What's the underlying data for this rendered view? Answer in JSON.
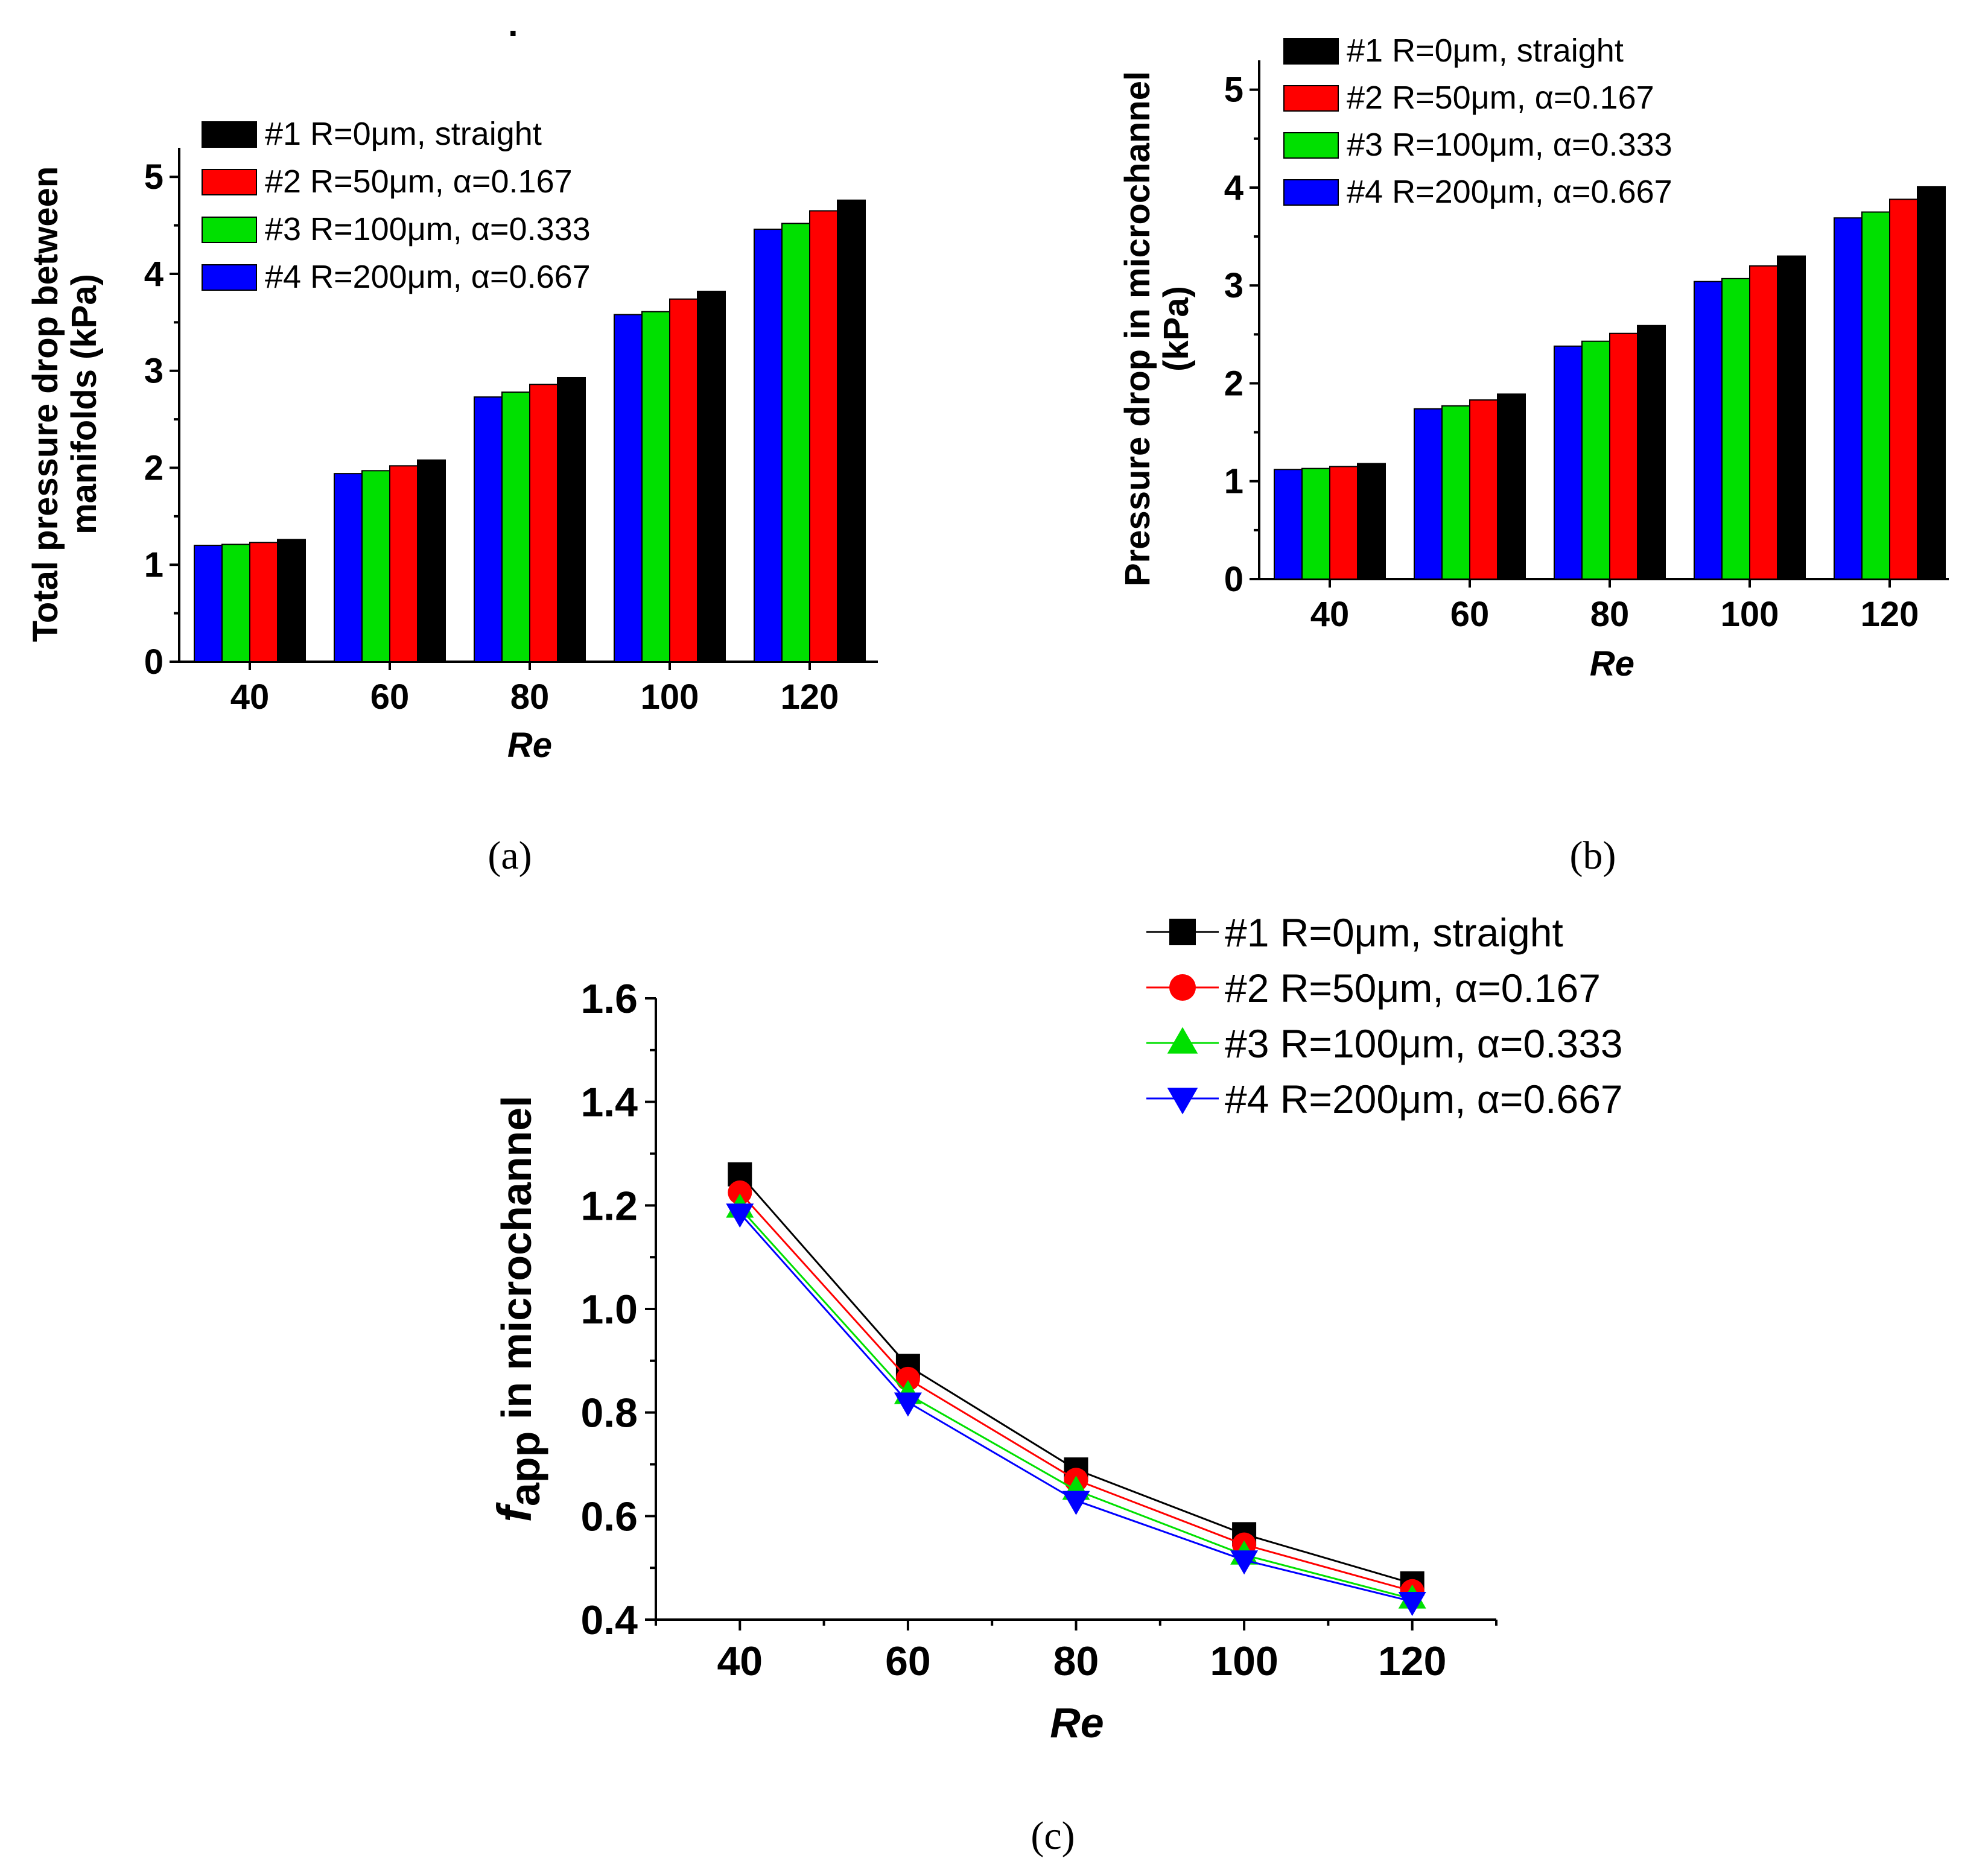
{
  "captions": {
    "a": "(a)",
    "b": "(b)",
    "c": "(c)"
  },
  "stray_mark": ".",
  "series_styles": [
    {
      "color": "#000000",
      "marker": "square"
    },
    {
      "color": "#ff0000",
      "marker": "circle"
    },
    {
      "color": "#00e000",
      "marker": "triangle-up"
    },
    {
      "color": "#0000ff",
      "marker": "triangle-down"
    }
  ],
  "chart_data": [
    {
      "id": "a",
      "type": "bar",
      "title": "",
      "xlabel": "Re",
      "ylabel_lines": [
        "Total pressure drop between",
        "manifolds (kPa)"
      ],
      "categories": [
        "40",
        "60",
        "80",
        "100",
        "120"
      ],
      "yticks": [
        "0",
        "1",
        "2",
        "3",
        "4",
        "5"
      ],
      "ylim": [
        0,
        5.3
      ],
      "legend_position": "top-left",
      "bar_order": [
        3,
        2,
        1,
        0
      ],
      "series": [
        {
          "name": "#1 R=0μm, straight",
          "values": [
            1.26,
            2.08,
            2.93,
            3.82,
            4.76
          ]
        },
        {
          "name": "#2 R=50μm, α=0.167",
          "values": [
            1.23,
            2.02,
            2.86,
            3.74,
            4.65
          ]
        },
        {
          "name": "#3 R=100μm, α=0.333",
          "values": [
            1.21,
            1.97,
            2.78,
            3.61,
            4.52
          ]
        },
        {
          "name": "#4 R=200μm, α=0.667",
          "values": [
            1.2,
            1.94,
            2.73,
            3.58,
            4.46
          ]
        }
      ]
    },
    {
      "id": "b",
      "type": "bar",
      "title": "",
      "xlabel": "Re",
      "ylabel_lines": [
        "Pressure drop in microchannel",
        "(kPa)"
      ],
      "categories": [
        "40",
        "60",
        "80",
        "100",
        "120"
      ],
      "yticks": [
        "0",
        "1",
        "2",
        "3",
        "4",
        "5"
      ],
      "ylim": [
        0,
        5.3
      ],
      "legend_position": "top-left",
      "bar_order": [
        3,
        2,
        1,
        0
      ],
      "series": [
        {
          "name": "#1 R=0μm, straight",
          "values": [
            1.18,
            1.89,
            2.59,
            3.3,
            4.01
          ]
        },
        {
          "name": "#2 R=50μm, α=0.167",
          "values": [
            1.15,
            1.83,
            2.51,
            3.2,
            3.88
          ]
        },
        {
          "name": "#3 R=100μm, α=0.333",
          "values": [
            1.13,
            1.77,
            2.43,
            3.07,
            3.75
          ]
        },
        {
          "name": "#4 R=200μm, α=0.667",
          "values": [
            1.12,
            1.74,
            2.38,
            3.04,
            3.69
          ]
        }
      ]
    },
    {
      "id": "c",
      "type": "line",
      "title": "",
      "xlabel": "Re",
      "ylabel_italic": "f",
      "ylabel_sub": "app",
      "ylabel_rest": " in microchannel",
      "x": [
        40,
        60,
        80,
        100,
        120
      ],
      "xticks": [
        "40",
        "60",
        "80",
        "100",
        "120"
      ],
      "xlim": [
        30,
        130
      ],
      "yticks": [
        "0.4",
        "0.6",
        "0.8",
        "1.0",
        "1.2",
        "1.4",
        "1.6"
      ],
      "ylim": [
        0.4,
        1.6
      ],
      "legend_position": "top-right",
      "series": [
        {
          "name": "#1 R=0μm, straight",
          "values": [
            1.26,
            0.89,
            0.69,
            0.565,
            0.47
          ]
        },
        {
          "name": "#2 R=50μm, α=0.167",
          "values": [
            1.225,
            0.865,
            0.67,
            0.545,
            0.455
          ]
        },
        {
          "name": "#3 R=100μm, α=0.333",
          "values": [
            1.195,
            0.835,
            0.65,
            0.525,
            0.44
          ]
        },
        {
          "name": "#4 R=200μm, α=0.667",
          "values": [
            1.185,
            0.82,
            0.63,
            0.515,
            0.435
          ]
        }
      ]
    }
  ]
}
